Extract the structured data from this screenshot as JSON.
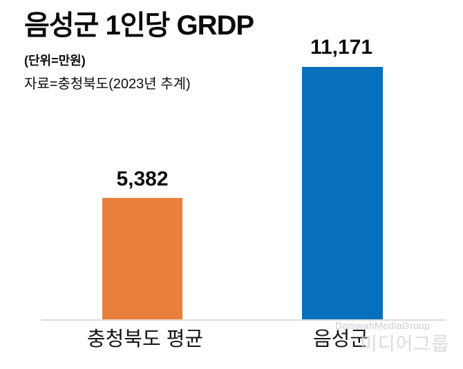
{
  "page": {
    "background": "#ffffff"
  },
  "chart_data": {
    "type": "bar",
    "title": "음성군 1인당 GRDP",
    "unit_note": "(단위=만원)",
    "source_note": "자료=충청북도(2023년 추계)",
    "categories": [
      "충청북도 평균",
      "음성군"
    ],
    "values": [
      5382,
      11171
    ],
    "value_labels": [
      "5,382",
      "11,171"
    ],
    "series_colors": [
      "#E87F3A",
      "#0670BC"
    ],
    "ylim": [
      0,
      11700
    ],
    "grid": "off",
    "legend": "none",
    "axis_line_color": "#dddcda"
  },
  "watermark": {
    "line1": "DamwahMediaGroup",
    "line2": "미디어그룹"
  }
}
